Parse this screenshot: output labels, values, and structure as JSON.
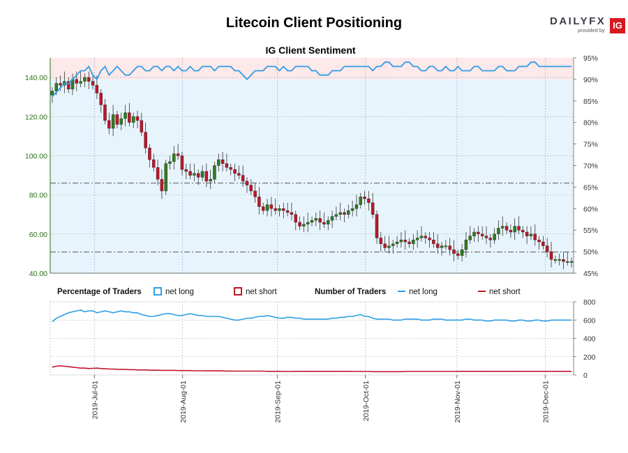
{
  "title": "Litecoin Client Positioning",
  "subtitle": "IG Client Sentiment",
  "logo": {
    "brand_a": "DAILY",
    "brand_b": "FX",
    "provided_by": "provided by",
    "ig": "IG"
  },
  "colors": {
    "long": "#2e9ee6",
    "short": "#c0152b",
    "bull": "#2f7d1e",
    "bear": "#c0152b",
    "top_band": "#fde8ea",
    "main_bg": "#e8f4fc",
    "axis_green": "#2a6e1a"
  },
  "chart_data": [
    {
      "type": "candlestick",
      "title": "IG Client Sentiment",
      "ylim": [
        40,
        150
      ],
      "yticks": [
        "40.00",
        "60.00",
        "80.00",
        "100.00",
        "120.00",
        "140.00"
      ],
      "pct_axis": {
        "ylim": [
          45,
          95
        ],
        "ticks": [
          "45%",
          "50%",
          "55%",
          "60%",
          "65%",
          "70%",
          "75%",
          "80%",
          "85%",
          "90%",
          "95%"
        ]
      },
      "hlines": [
        86,
        50.8
      ],
      "x_dates": [
        "2019-Jul-01",
        "2019-Aug-01",
        "2019-Sep-01",
        "2019-Oct-01",
        "2019-Nov-01",
        "2019-Dec-01"
      ],
      "closes": [
        133,
        137,
        136,
        138,
        134,
        139,
        137,
        138,
        140,
        138,
        136,
        132,
        126,
        118,
        114,
        121,
        116,
        119,
        122,
        117,
        120,
        118,
        112,
        104,
        98,
        94,
        88,
        82,
        96,
        97,
        101,
        100,
        93,
        92,
        90,
        91,
        89,
        92,
        87,
        88,
        95,
        98,
        96,
        94,
        93,
        91,
        90,
        87,
        85,
        82,
        79,
        74,
        72,
        75,
        73,
        72,
        73,
        72,
        71,
        70,
        66,
        64,
        65,
        66,
        67,
        68,
        66,
        65,
        67,
        69,
        70,
        71,
        70,
        72,
        73,
        75,
        79,
        78,
        76,
        70,
        58,
        55,
        53,
        54,
        55,
        56,
        57,
        56,
        55,
        57,
        58,
        59,
        58,
        57,
        55,
        53,
        54,
        54,
        52,
        50,
        49,
        52,
        57,
        59,
        61,
        60,
        59,
        58,
        57,
        60,
        63,
        64,
        62,
        61,
        64,
        62,
        61,
        59,
        60,
        57,
        56,
        54,
        51,
        47,
        47,
        47,
        46,
        46,
        46
      ],
      "pct_long": [
        86,
        87,
        88,
        89,
        89,
        90,
        91,
        92,
        92,
        93,
        91,
        90,
        92,
        93,
        91,
        92,
        93,
        92,
        91,
        91,
        92,
        93,
        93,
        92,
        92,
        93,
        93,
        92,
        93,
        93,
        92,
        93,
        92,
        92,
        93,
        92,
        92,
        93,
        93,
        93,
        92,
        93,
        93,
        93,
        93,
        92,
        92,
        91,
        90,
        91,
        92,
        92,
        92,
        93,
        93,
        93,
        92,
        93,
        92,
        92,
        93,
        93,
        93,
        93,
        92,
        92,
        91,
        91,
        91,
        92,
        92,
        92,
        93,
        93,
        93,
        93,
        93,
        93,
        93,
        92,
        93,
        93,
        94,
        94,
        93,
        93,
        93,
        94,
        94,
        93,
        93,
        92,
        92,
        93,
        93,
        92,
        92,
        93,
        92,
        92,
        93,
        92,
        92,
        92,
        93,
        93,
        92,
        92,
        92,
        92,
        93,
        93,
        92,
        92,
        92,
        93,
        93,
        93,
        94,
        94,
        93,
        93,
        93,
        93,
        93,
        93,
        93,
        93,
        93
      ]
    },
    {
      "type": "line",
      "ylim": [
        0,
        800
      ],
      "yticks": [
        "0",
        "200",
        "400",
        "600",
        "800"
      ],
      "series": [
        {
          "name": "net long",
          "values": [
            580,
            620,
            640,
            660,
            680,
            690,
            700,
            710,
            690,
            700,
            700,
            680,
            690,
            700,
            690,
            680,
            690,
            700,
            690,
            690,
            680,
            680,
            660,
            650,
            640,
            640,
            650,
            660,
            670,
            670,
            660,
            650,
            650,
            660,
            670,
            660,
            650,
            650,
            640,
            640,
            640,
            640,
            630,
            620,
            610,
            600,
            600,
            610,
            620,
            620,
            630,
            640,
            640,
            650,
            640,
            630,
            620,
            620,
            630,
            630,
            620,
            620,
            610,
            610,
            610,
            610,
            610,
            610,
            610,
            620,
            620,
            630,
            630,
            640,
            640,
            650,
            660,
            640,
            640,
            620,
            610,
            610,
            610,
            610,
            600,
            600,
            600,
            610,
            610,
            610,
            610,
            600,
            600,
            600,
            610,
            610,
            610,
            600,
            600,
            600,
            600,
            600,
            610,
            610,
            600,
            600,
            600,
            590,
            590,
            600,
            600,
            600,
            600,
            590,
            590,
            600,
            600,
            590,
            590,
            600,
            600,
            590,
            590,
            600,
            600,
            600,
            600,
            600,
            600
          ]
        },
        {
          "name": "net short",
          "values": [
            85,
            95,
            100,
            95,
            90,
            85,
            80,
            75,
            75,
            70,
            72,
            75,
            70,
            68,
            65,
            65,
            62,
            60,
            60,
            58,
            58,
            55,
            55,
            55,
            52,
            52,
            52,
            50,
            50,
            50,
            50,
            48,
            48,
            48,
            48,
            46,
            46,
            46,
            45,
            45,
            45,
            44,
            44,
            43,
            43,
            42,
            42,
            42,
            42,
            42,
            42,
            42,
            42,
            40,
            40,
            40,
            40,
            38,
            38,
            38,
            40,
            40,
            40,
            40,
            40,
            40,
            40,
            40,
            40,
            40,
            40,
            40,
            40,
            40,
            38,
            38,
            38,
            38,
            38,
            36,
            36,
            36,
            36,
            36,
            36,
            36,
            36,
            38,
            38,
            38,
            38,
            38,
            38,
            38,
            38,
            38,
            38,
            38,
            38,
            38,
            40,
            40,
            40,
            40,
            40,
            40,
            40,
            40,
            40,
            40,
            40,
            40,
            40,
            40,
            40,
            40,
            40,
            40,
            40,
            40,
            40,
            40,
            40,
            40,
            40,
            40,
            40,
            40,
            40
          ]
        }
      ]
    }
  ],
  "legend": {
    "pct_title": "Percentage of Traders",
    "pct_long": "net long",
    "pct_short": "net short",
    "num_title": "Number of Traders",
    "num_long": "net long",
    "num_short": "net short"
  }
}
